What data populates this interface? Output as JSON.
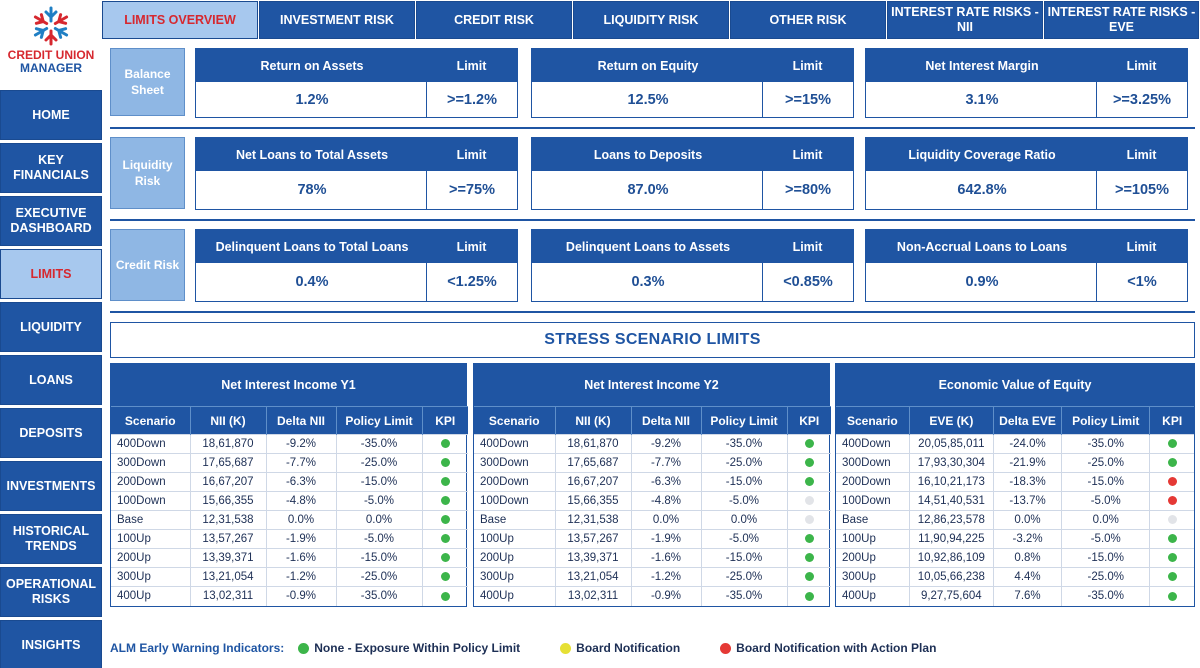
{
  "brand": {
    "line1": "CREDIT UNION",
    "line2": "MANAGER"
  },
  "nav": [
    {
      "label": "HOME",
      "active": false
    },
    {
      "label": "KEY FINANCIALS",
      "active": false
    },
    {
      "label": "EXECUTIVE DASHBOARD",
      "active": false
    },
    {
      "label": "LIMITS",
      "active": true
    },
    {
      "label": "LIQUIDITY",
      "active": false
    },
    {
      "label": "LOANS",
      "active": false
    },
    {
      "label": "DEPOSITS",
      "active": false
    },
    {
      "label": "INVESTMENTS",
      "active": false
    },
    {
      "label": "HISTORICAL TRENDS",
      "active": false
    },
    {
      "label": "OPERATIONAL RISKS",
      "active": false
    },
    {
      "label": "INSIGHTS",
      "active": false
    }
  ],
  "tabs": [
    {
      "label": "LIMITS OVERVIEW",
      "active": true
    },
    {
      "label": "INVESTMENT RISK",
      "active": false
    },
    {
      "label": "CREDIT RISK",
      "active": false
    },
    {
      "label": "LIQUIDITY RISK",
      "active": false
    },
    {
      "label": "OTHER RISK",
      "active": false
    },
    {
      "label": "INTEREST RATE RISKS - NII",
      "active": false
    },
    {
      "label": "INTEREST RATE RISKS - EVE",
      "active": false
    }
  ],
  "kpi_rows": [
    {
      "label": "Balance Sheet",
      "cards": [
        {
          "title": "Return on Assets",
          "limit_label": "Limit",
          "value": "1.2%",
          "limit": ">=1.2%"
        },
        {
          "title": "Return on Equity",
          "limit_label": "Limit",
          "value": "12.5%",
          "limit": ">=15%"
        },
        {
          "title": "Net Interest Margin",
          "limit_label": "Limit",
          "value": "3.1%",
          "limit": ">=3.25%"
        }
      ]
    },
    {
      "label": "Liquidity Risk",
      "cards": [
        {
          "title": "Net Loans to Total Assets",
          "limit_label": "Limit",
          "value": "78%",
          "limit": ">=75%"
        },
        {
          "title": "Loans to Deposits",
          "limit_label": "Limit",
          "value": "87.0%",
          "limit": ">=80%"
        },
        {
          "title": "Liquidity Coverage Ratio",
          "limit_label": "Limit",
          "value": "642.8%",
          "limit": ">=105%"
        }
      ]
    },
    {
      "label": "Credit Risk",
      "cards": [
        {
          "title": "Delinquent Loans to Total Loans",
          "limit_label": "Limit",
          "value": "0.4%",
          "limit": "<1.25%"
        },
        {
          "title": "Delinquent Loans to Assets",
          "limit_label": "Limit",
          "value": "0.3%",
          "limit": "<0.85%"
        },
        {
          "title": "Non-Accrual Loans to Loans",
          "limit_label": "Limit",
          "value": "0.9%",
          "limit": "<1%"
        }
      ]
    }
  ],
  "stress_title": "STRESS SCENARIO LIMITS",
  "colors": {
    "green": "#3cb54a",
    "yellow": "#e6e034",
    "red": "#e53935",
    "grey": "#e2e4e8"
  },
  "stress_tables": [
    {
      "title": "Net Interest Income Y1",
      "columns": [
        "Scenario",
        "NII (K)",
        "Delta NII",
        "Policy Limit",
        "KPI"
      ],
      "rows": [
        {
          "scenario": "400Down",
          "value": "18,61,870",
          "delta": "-9.2%",
          "limit": "-35.0%",
          "kpi": "green"
        },
        {
          "scenario": "300Down",
          "value": "17,65,687",
          "delta": "-7.7%",
          "limit": "-25.0%",
          "kpi": "green"
        },
        {
          "scenario": "200Down",
          "value": "16,67,207",
          "delta": "-6.3%",
          "limit": "-15.0%",
          "kpi": "green"
        },
        {
          "scenario": "100Down",
          "value": "15,66,355",
          "delta": "-4.8%",
          "limit": "-5.0%",
          "kpi": "green"
        },
        {
          "scenario": "Base",
          "value": "12,31,538",
          "delta": "0.0%",
          "limit": "0.0%",
          "kpi": "green"
        },
        {
          "scenario": "100Up",
          "value": "13,57,267",
          "delta": "-1.9%",
          "limit": "-5.0%",
          "kpi": "green"
        },
        {
          "scenario": "200Up",
          "value": "13,39,371",
          "delta": "-1.6%",
          "limit": "-15.0%",
          "kpi": "green"
        },
        {
          "scenario": "300Up",
          "value": "13,21,054",
          "delta": "-1.2%",
          "limit": "-25.0%",
          "kpi": "green"
        },
        {
          "scenario": "400Up",
          "value": "13,02,311",
          "delta": "-0.9%",
          "limit": "-35.0%",
          "kpi": "green"
        }
      ]
    },
    {
      "title": "Net Interest Income Y2",
      "columns": [
        "Scenario",
        "NII (K)",
        "Delta NII",
        "Policy Limit",
        "KPI"
      ],
      "rows": [
        {
          "scenario": "400Down",
          "value": "18,61,870",
          "delta": "-9.2%",
          "limit": "-35.0%",
          "kpi": "green"
        },
        {
          "scenario": "300Down",
          "value": "17,65,687",
          "delta": "-7.7%",
          "limit": "-25.0%",
          "kpi": "green"
        },
        {
          "scenario": "200Down",
          "value": "16,67,207",
          "delta": "-6.3%",
          "limit": "-15.0%",
          "kpi": "green"
        },
        {
          "scenario": "100Down",
          "value": "15,66,355",
          "delta": "-4.8%",
          "limit": "-5.0%",
          "kpi": "grey"
        },
        {
          "scenario": "Base",
          "value": "12,31,538",
          "delta": "0.0%",
          "limit": "0.0%",
          "kpi": "grey"
        },
        {
          "scenario": "100Up",
          "value": "13,57,267",
          "delta": "-1.9%",
          "limit": "-5.0%",
          "kpi": "green"
        },
        {
          "scenario": "200Up",
          "value": "13,39,371",
          "delta": "-1.6%",
          "limit": "-15.0%",
          "kpi": "green"
        },
        {
          "scenario": "300Up",
          "value": "13,21,054",
          "delta": "-1.2%",
          "limit": "-25.0%",
          "kpi": "green"
        },
        {
          "scenario": "400Up",
          "value": "13,02,311",
          "delta": "-0.9%",
          "limit": "-35.0%",
          "kpi": "green"
        }
      ]
    },
    {
      "title": "Economic Value of Equity",
      "columns": [
        "Scenario",
        "EVE (K)",
        "Delta EVE",
        "Policy Limit",
        "KPI"
      ],
      "rows": [
        {
          "scenario": "400Down",
          "value": "20,05,85,011",
          "delta": "-24.0%",
          "limit": "-35.0%",
          "kpi": "green"
        },
        {
          "scenario": "300Down",
          "value": "17,93,30,304",
          "delta": "-21.9%",
          "limit": "-25.0%",
          "kpi": "green"
        },
        {
          "scenario": "200Down",
          "value": "16,10,21,173",
          "delta": "-18.3%",
          "limit": "-15.0%",
          "kpi": "red"
        },
        {
          "scenario": "100Down",
          "value": "14,51,40,531",
          "delta": "-13.7%",
          "limit": "-5.0%",
          "kpi": "red"
        },
        {
          "scenario": "Base",
          "value": "12,86,23,578",
          "delta": "0.0%",
          "limit": "0.0%",
          "kpi": "grey"
        },
        {
          "scenario": "100Up",
          "value": "11,90,94,225",
          "delta": "-3.2%",
          "limit": "-5.0%",
          "kpi": "green"
        },
        {
          "scenario": "200Up",
          "value": "10,92,86,109",
          "delta": "0.8%",
          "limit": "-15.0%",
          "kpi": "green"
        },
        {
          "scenario": "300Up",
          "value": "10,05,66,238",
          "delta": "4.4%",
          "limit": "-25.0%",
          "kpi": "green"
        },
        {
          "scenario": "400Up",
          "value": "9,27,75,604",
          "delta": "7.6%",
          "limit": "-35.0%",
          "kpi": "green"
        }
      ]
    }
  ],
  "legend": {
    "title": "ALM Early Warning Indicators:",
    "items": [
      {
        "color": "green",
        "label": "None - Exposure Within Policy Limit"
      },
      {
        "color": "yellow",
        "label": "Board Notification"
      },
      {
        "color": "red",
        "label": "Board Notification with Action Plan"
      }
    ]
  }
}
